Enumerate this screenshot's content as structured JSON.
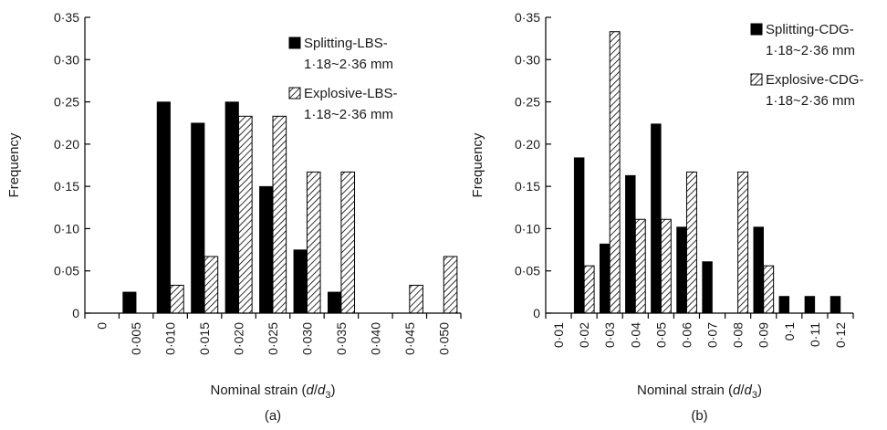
{
  "chart_data": [
    {
      "type": "bar",
      "panel_label": "(a)",
      "xlabel_parts": [
        "Nominal strain (",
        "d",
        "/",
        "d",
        "3",
        ")"
      ],
      "ylabel": "Frequency",
      "ylim": [
        0,
        0.35
      ],
      "yticks": [
        0,
        0.05,
        0.1,
        0.15,
        0.2,
        0.25,
        0.3,
        0.35
      ],
      "ytick_labels": [
        "0",
        "0·05",
        "0·10",
        "0·15",
        "0·20",
        "0·25",
        "0·30",
        "0·35"
      ],
      "categories": [
        "0",
        "0·005",
        "0·010",
        "0·015",
        "0·020",
        "0·025",
        "0·030",
        "0·035",
        "0·040",
        "0·045",
        "0·050"
      ],
      "legend_position": "top-right",
      "series": [
        {
          "legend_lines": [
            "Splitting-LBS-",
            "1·18~2·36 mm"
          ],
          "fill": "solid",
          "color": "#000000",
          "values": [
            0,
            0.025,
            0.25,
            0.225,
            0.25,
            0.15,
            0.075,
            0.025,
            0,
            0,
            0
          ]
        },
        {
          "legend_lines": [
            "Explosive-LBS-",
            "1·18~2·36 mm"
          ],
          "fill": "hatched",
          "color": "#000000",
          "values": [
            0,
            0,
            0.033,
            0.067,
            0.233,
            0.233,
            0.167,
            0.167,
            0,
            0.033,
            0.067
          ]
        }
      ]
    },
    {
      "type": "bar",
      "panel_label": "(b)",
      "xlabel_parts": [
        "Nominal strain (",
        "d",
        "/",
        "d",
        "3",
        ")"
      ],
      "ylabel": "Frequency",
      "ylim": [
        0,
        0.35
      ],
      "yticks": [
        0,
        0.05,
        0.1,
        0.15,
        0.2,
        0.25,
        0.3,
        0.35
      ],
      "ytick_labels": [
        "0",
        "0·05",
        "0·10",
        "0·15",
        "0·20",
        "0·25",
        "0·30",
        "0·35"
      ],
      "categories": [
        "0·01",
        "0·02",
        "0·03",
        "0·04",
        "0·05",
        "0·06",
        "0·07",
        "0·08",
        "0·09",
        "0·1",
        "0·11",
        "0·12"
      ],
      "legend_position": "top-right",
      "series": [
        {
          "legend_lines": [
            "Splitting-CDG-",
            "1·18~2·36 mm"
          ],
          "fill": "solid",
          "color": "#000000",
          "values": [
            0,
            0.184,
            0.082,
            0.163,
            0.224,
            0.102,
            0.061,
            0,
            0.102,
            0.02,
            0.02,
            0.02
          ]
        },
        {
          "legend_lines": [
            "Explosive-CDG-",
            "1·18~2·36 mm"
          ],
          "fill": "hatched",
          "color": "#000000",
          "values": [
            0,
            0.056,
            0.333,
            0.111,
            0.111,
            0.167,
            0,
            0.167,
            0.056,
            0,
            0,
            0
          ]
        }
      ]
    }
  ]
}
